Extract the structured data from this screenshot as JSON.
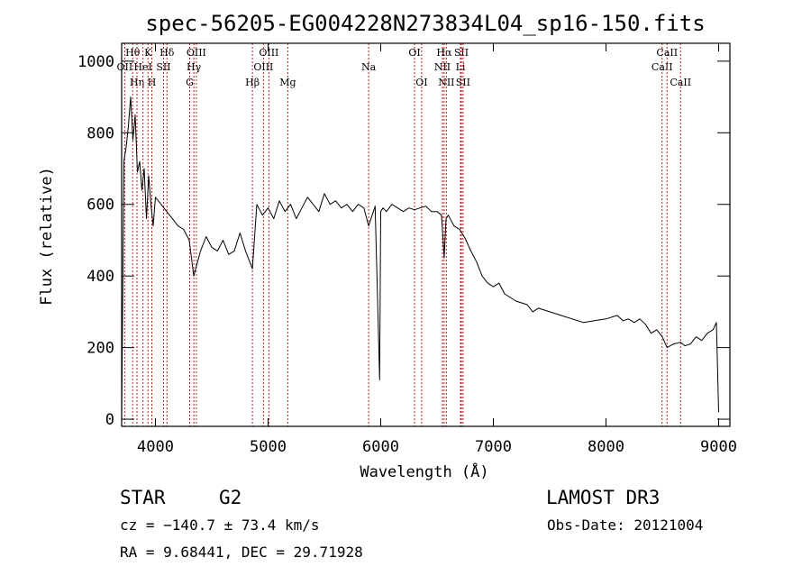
{
  "chart_data": {
    "type": "line",
    "title": "spec-56205-EG004228N273834L04_sp16-150.fits",
    "xlabel": "Wavelength (Å)",
    "ylabel": "Flux (relative)",
    "xlim": [
      3700,
      9100
    ],
    "ylim": [
      -20,
      1050
    ],
    "xticks": [
      4000,
      5000,
      6000,
      7000,
      8000,
      9000
    ],
    "yticks": [
      0,
      200,
      400,
      600,
      800,
      1000
    ],
    "grid": false,
    "line_color": "#000000",
    "marker_color": "#b22222",
    "series": [
      {
        "x": [
          3700,
          3720,
          3740,
          3760,
          3780,
          3800,
          3820,
          3840,
          3860,
          3880,
          3900,
          3920,
          3940,
          3960,
          3980,
          4000,
          4050,
          4100,
          4150,
          4200,
          4250,
          4300,
          4340,
          4400,
          4450,
          4500,
          4550,
          4600,
          4650,
          4700,
          4750,
          4800,
          4861,
          4900,
          4950,
          5000,
          5050,
          5100,
          5150,
          5200,
          5250,
          5300,
          5350,
          5400,
          5450,
          5500,
          5550,
          5600,
          5650,
          5700,
          5750,
          5800,
          5850,
          5893,
          5950,
          5990,
          6000,
          6020,
          6050,
          6100,
          6150,
          6200,
          6250,
          6300,
          6350,
          6400,
          6450,
          6500,
          6540,
          6563,
          6580,
          6600,
          6650,
          6700,
          6750,
          6800,
          6850,
          6900,
          6950,
          7000,
          7050,
          7100,
          7150,
          7200,
          7250,
          7300,
          7350,
          7400,
          7450,
          7500,
          7600,
          7700,
          7800,
          7900,
          8000,
          8100,
          8150,
          8200,
          8250,
          8300,
          8350,
          8400,
          8450,
          8500,
          8542,
          8600,
          8662,
          8700,
          8750,
          8800,
          8850,
          8900,
          8950,
          8980,
          9000
        ],
        "y": [
          0,
          720,
          760,
          820,
          900,
          780,
          850,
          690,
          720,
          640,
          700,
          560,
          680,
          600,
          540,
          620,
          600,
          580,
          560,
          540,
          530,
          500,
          400,
          470,
          510,
          480,
          470,
          500,
          460,
          470,
          520,
          470,
          420,
          600,
          570,
          590,
          560,
          610,
          580,
          600,
          560,
          590,
          620,
          600,
          580,
          630,
          600,
          610,
          590,
          600,
          580,
          600,
          590,
          540,
          595,
          110,
          580,
          590,
          580,
          600,
          590,
          580,
          590,
          585,
          590,
          595,
          580,
          580,
          570,
          450,
          560,
          570,
          540,
          530,
          505,
          470,
          440,
          400,
          380,
          370,
          380,
          350,
          340,
          330,
          325,
          320,
          300,
          310,
          305,
          300,
          290,
          280,
          270,
          275,
          280,
          290,
          275,
          280,
          270,
          280,
          265,
          240,
          250,
          230,
          200,
          210,
          215,
          205,
          210,
          230,
          220,
          240,
          250,
          270,
          20
        ]
      }
    ],
    "line_markers": [
      {
        "name": "OII",
        "wl": 3727,
        "row": 2
      },
      {
        "name": "Hθ",
        "wl": 3798,
        "row": 1
      },
      {
        "name": "Hη",
        "wl": 3836,
        "row": 3
      },
      {
        "name": "HeI",
        "wl": 3889,
        "row": 2
      },
      {
        "name": "K",
        "wl": 3934,
        "row": 1
      },
      {
        "name": "H",
        "wl": 3968,
        "row": 3
      },
      {
        "name": "SII",
        "wl": 4072,
        "row": 2
      },
      {
        "name": "Hδ",
        "wl": 4102,
        "row": 1
      },
      {
        "name": "G",
        "wl": 4304,
        "row": 3
      },
      {
        "name": "Hγ",
        "wl": 4341,
        "row": 2
      },
      {
        "name": "OIII",
        "wl": 4363,
        "row": 1
      },
      {
        "name": "Hβ",
        "wl": 4861,
        "row": 3
      },
      {
        "name": "OIII",
        "wl": 4959,
        "row": 2
      },
      {
        "name": "OIII",
        "wl": 5007,
        "row": 1
      },
      {
        "name": "Mg",
        "wl": 5175,
        "row": 3
      },
      {
        "name": "Na",
        "wl": 5893,
        "row": 2
      },
      {
        "name": "OI",
        "wl": 6300,
        "row": 1
      },
      {
        "name": "OI",
        "wl": 6363,
        "row": 3
      },
      {
        "name": "NII",
        "wl": 6548,
        "row": 2
      },
      {
        "name": "Hα",
        "wl": 6563,
        "row": 1
      },
      {
        "name": "NII",
        "wl": 6583,
        "row": 3
      },
      {
        "name": "Li",
        "wl": 6708,
        "row": 2
      },
      {
        "name": "SII",
        "wl": 6716,
        "row": 1
      },
      {
        "name": "SII",
        "wl": 6731,
        "row": 3
      },
      {
        "name": "CaII",
        "wl": 8498,
        "row": 2
      },
      {
        "name": "CaII",
        "wl": 8542,
        "row": 1
      },
      {
        "name": "CaII",
        "wl": 8662,
        "row": 3
      }
    ]
  },
  "info": {
    "class_label": "STAR",
    "subclass_label": "G2",
    "survey": "LAMOST DR3",
    "cz": "cz = −140.7 ± 73.4 km/s",
    "obs_date": "Obs-Date: 20121004",
    "coords": "RA =   9.68441, DEC =  29.71928"
  }
}
